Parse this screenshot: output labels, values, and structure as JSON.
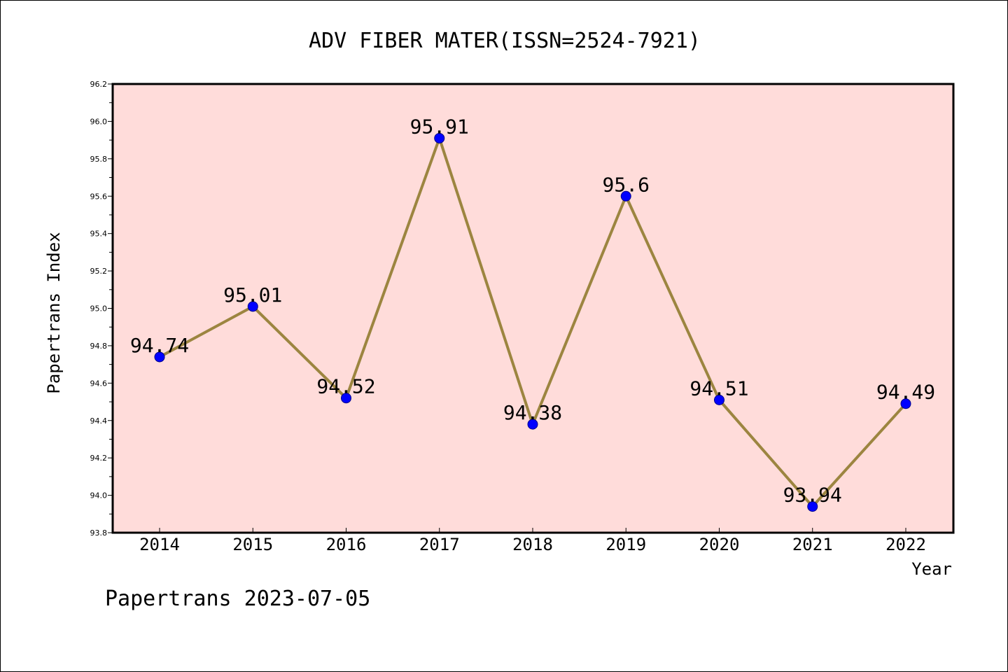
{
  "chart_data": {
    "type": "line",
    "title": "ADV FIBER MATER(ISSN=2524-7921)",
    "xlabel": "Year",
    "ylabel": "Papertrans Index",
    "x": [
      "2014",
      "2015",
      "2016",
      "2017",
      "2018",
      "2019",
      "2020",
      "2021",
      "2022"
    ],
    "values": [
      94.74,
      95.01,
      94.52,
      95.91,
      94.38,
      95.6,
      94.51,
      93.94,
      94.49
    ],
    "data_labels": [
      "94.74",
      "95.01",
      "94.52",
      "95.91",
      "94.38",
      "95.6",
      "94.51",
      "93.94",
      "94.49"
    ],
    "ylim": [
      93.8,
      96.2
    ],
    "yticks": [
      "93.8",
      "94.0",
      "94.2",
      "94.4",
      "94.6",
      "94.8",
      "95.0",
      "95.2",
      "95.4",
      "95.6",
      "95.8",
      "96.0",
      "96.2"
    ],
    "grid": false,
    "legend": "none",
    "colors": {
      "plot_background": "#ffdcda",
      "line": "#9c8540",
      "marker": "#0000ff"
    }
  },
  "footer": {
    "text": "Papertrans 2023-07-05"
  }
}
